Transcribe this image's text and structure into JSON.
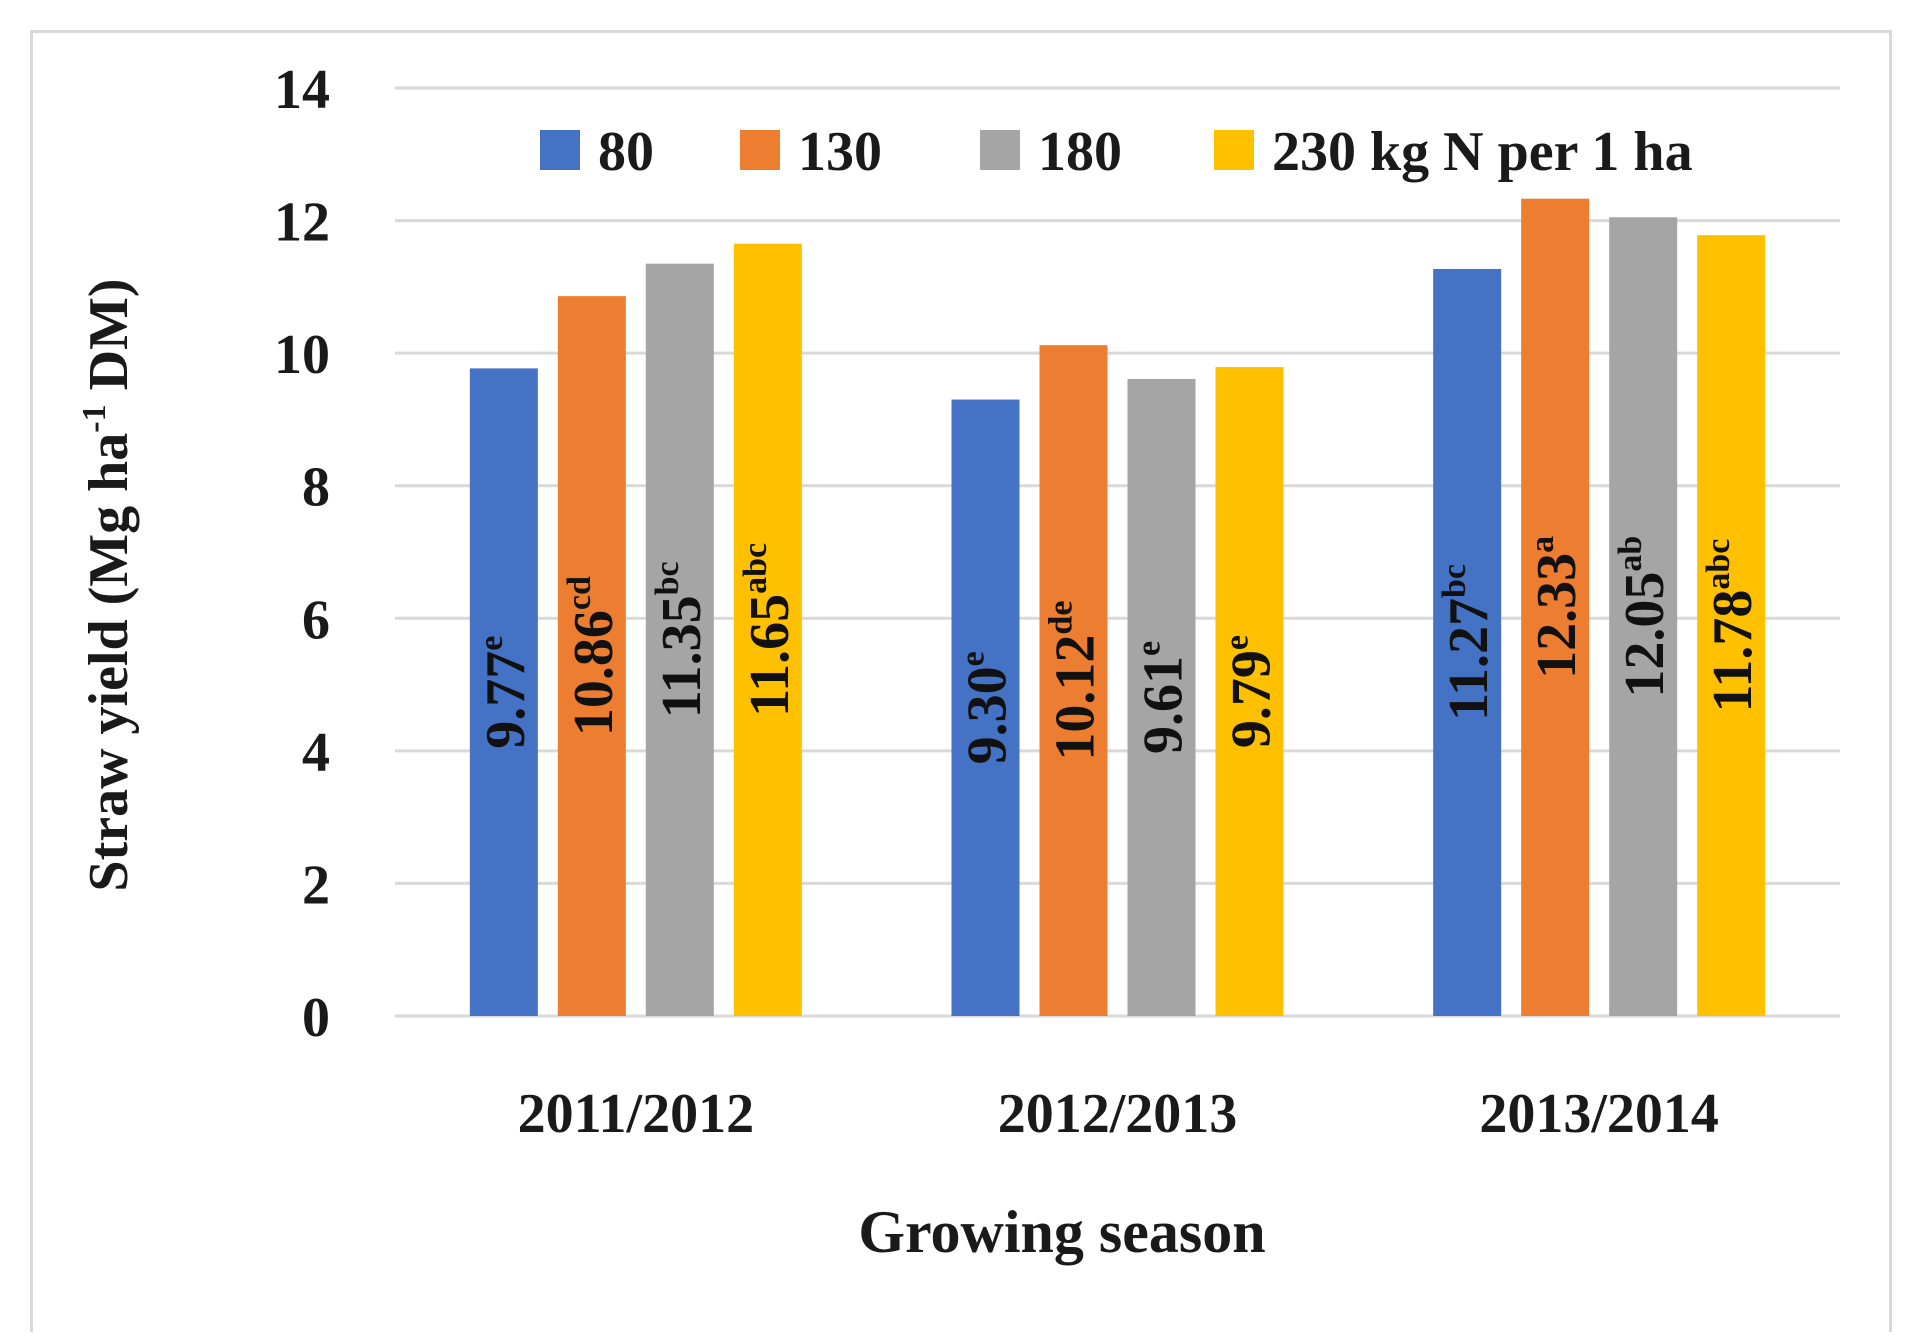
{
  "chart_data": {
    "type": "bar",
    "xlabel": "Growing season",
    "ylabel_main": "Straw yield (Mg ha",
    "ylabel_sup": "-1",
    "ylabel_end": " DM)",
    "ylim": [
      0,
      14
    ],
    "yticks": [
      0,
      2,
      4,
      6,
      8,
      10,
      12,
      14
    ],
    "grid": true,
    "legend_position": "top",
    "categories": [
      "2011/2012",
      "2012/2013",
      "2013/2014"
    ],
    "series": [
      {
        "name": "80",
        "color": "#4472c4",
        "label_color": "#111111",
        "values": [
          9.77,
          9.3,
          11.27
        ],
        "labels": [
          "9.77",
          "9.30",
          "11.27"
        ],
        "letters": [
          "e",
          "e",
          "bc"
        ]
      },
      {
        "name": "130",
        "color": "#ed7d31",
        "label_color": "#111111",
        "values": [
          10.86,
          10.12,
          12.33
        ],
        "labels": [
          "10.86",
          "10.12",
          "12.33"
        ],
        "letters": [
          "cd",
          "de",
          "a"
        ]
      },
      {
        "name": "180",
        "color": "#a5a5a5",
        "label_color": "#111111",
        "values": [
          11.35,
          9.61,
          12.05
        ],
        "labels": [
          "11.35",
          "9.61",
          "12.05"
        ],
        "letters": [
          "bc",
          "e",
          "ab"
        ]
      },
      {
        "name": "230 kg N per 1 ha",
        "color": "#ffc000",
        "label_color": "#111111",
        "values": [
          11.65,
          9.79,
          11.78
        ],
        "labels": [
          "11.65",
          "9.79",
          "11.78"
        ],
        "letters": [
          "abc",
          "e",
          "abc"
        ]
      }
    ]
  }
}
